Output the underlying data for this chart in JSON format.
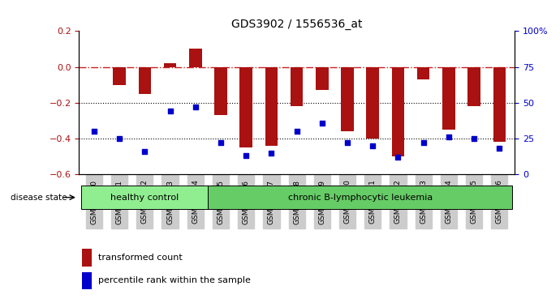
{
  "title": "GDS3902 / 1556536_at",
  "samples": [
    "GSM658010",
    "GSM658011",
    "GSM658012",
    "GSM658013",
    "GSM658014",
    "GSM658015",
    "GSM658016",
    "GSM658017",
    "GSM658018",
    "GSM658019",
    "GSM658020",
    "GSM658021",
    "GSM658022",
    "GSM658023",
    "GSM658024",
    "GSM658025",
    "GSM658026"
  ],
  "bar_values": [
    0.0,
    -0.1,
    -0.15,
    0.02,
    0.1,
    -0.27,
    -0.45,
    -0.44,
    -0.22,
    -0.13,
    -0.36,
    -0.4,
    -0.5,
    -0.07,
    -0.35,
    -0.22,
    -0.42
  ],
  "percentile_values": [
    30,
    25,
    16,
    44,
    47,
    22,
    13,
    15,
    30,
    36,
    22,
    20,
    12,
    22,
    26,
    25,
    18
  ],
  "bar_color": "#aa1111",
  "dot_color": "#0000cc",
  "dashed_line_color": "#cc2222",
  "ylim_left": [
    -0.6,
    0.2
  ],
  "ylim_right": [
    0,
    100
  ],
  "yticks_left": [
    -0.6,
    -0.4,
    -0.2,
    0.0,
    0.2
  ],
  "yticks_right": [
    0,
    25,
    50,
    75,
    100
  ],
  "healthy_control_count": 5,
  "group1_label": "healthy control",
  "group2_label": "chronic B-lymphocytic leukemia",
  "disease_state_label": "disease state",
  "legend_bar_label": "transformed count",
  "legend_dot_label": "percentile rank within the sample",
  "group1_color": "#90ee90",
  "group2_color": "#66cc66",
  "tick_label_bg": "#cccccc"
}
